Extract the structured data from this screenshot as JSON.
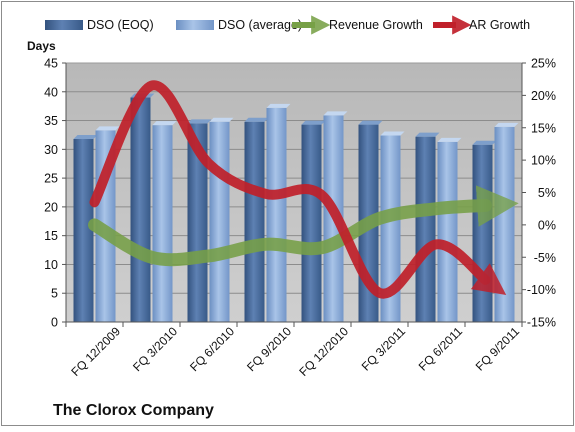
{
  "chart_data": {
    "type": "bar",
    "title": "The Clorox Company",
    "ylabel": "Days",
    "categories": [
      "FQ 12/2009",
      "FQ 3/2010",
      "FQ 6/2010",
      "FQ 9/2010",
      "FQ 12/2010",
      "FQ 3/2011",
      "FQ 6/2011",
      "FQ 9/2011"
    ],
    "ylim": [
      0,
      45
    ],
    "yticks": [
      "0",
      "5",
      "10",
      "15",
      "20",
      "25",
      "30",
      "35",
      "40",
      "45"
    ],
    "y2lim": [
      -15,
      25
    ],
    "y2ticks": [
      "-15%",
      "-10%",
      "-5%",
      "0%",
      "5%",
      "10%",
      "15%",
      "20%",
      "25%"
    ],
    "grid": true,
    "legend_position": "top",
    "series": [
      {
        "name": "DSO (EOQ)",
        "type": "bar",
        "axis": "left",
        "color": "#4a6c9c",
        "values": [
          31.8,
          39.0,
          34.5,
          34.8,
          34.3,
          34.3,
          32.2,
          30.8
        ]
      },
      {
        "name": "DSO (average)",
        "type": "bar",
        "axis": "left",
        "color": "#7fa3d3",
        "values": [
          33.3,
          34.2,
          34.8,
          37.2,
          35.9,
          32.4,
          31.3,
          33.9
        ]
      },
      {
        "name": "Revenue Growth",
        "type": "line",
        "axis": "right",
        "color": "#77a047",
        "values": [
          0.0,
          -5.0,
          -4.8,
          -3.0,
          -3.5,
          1.0,
          2.5,
          3.0
        ]
      },
      {
        "name": "AR Growth",
        "type": "line",
        "axis": "right",
        "color": "#c0202a",
        "values": [
          3.5,
          21.5,
          9.5,
          4.8,
          4.5,
          -10.5,
          -3.0,
          -8.5
        ]
      }
    ],
    "colors": {
      "plot_background": "#c0c0c0",
      "grid": "#8c8c8c",
      "revenue": "#77a047",
      "ar": "#c0202a",
      "bar_eoq": "#4a6c9c",
      "bar_avg": "#7fa3d3"
    }
  }
}
